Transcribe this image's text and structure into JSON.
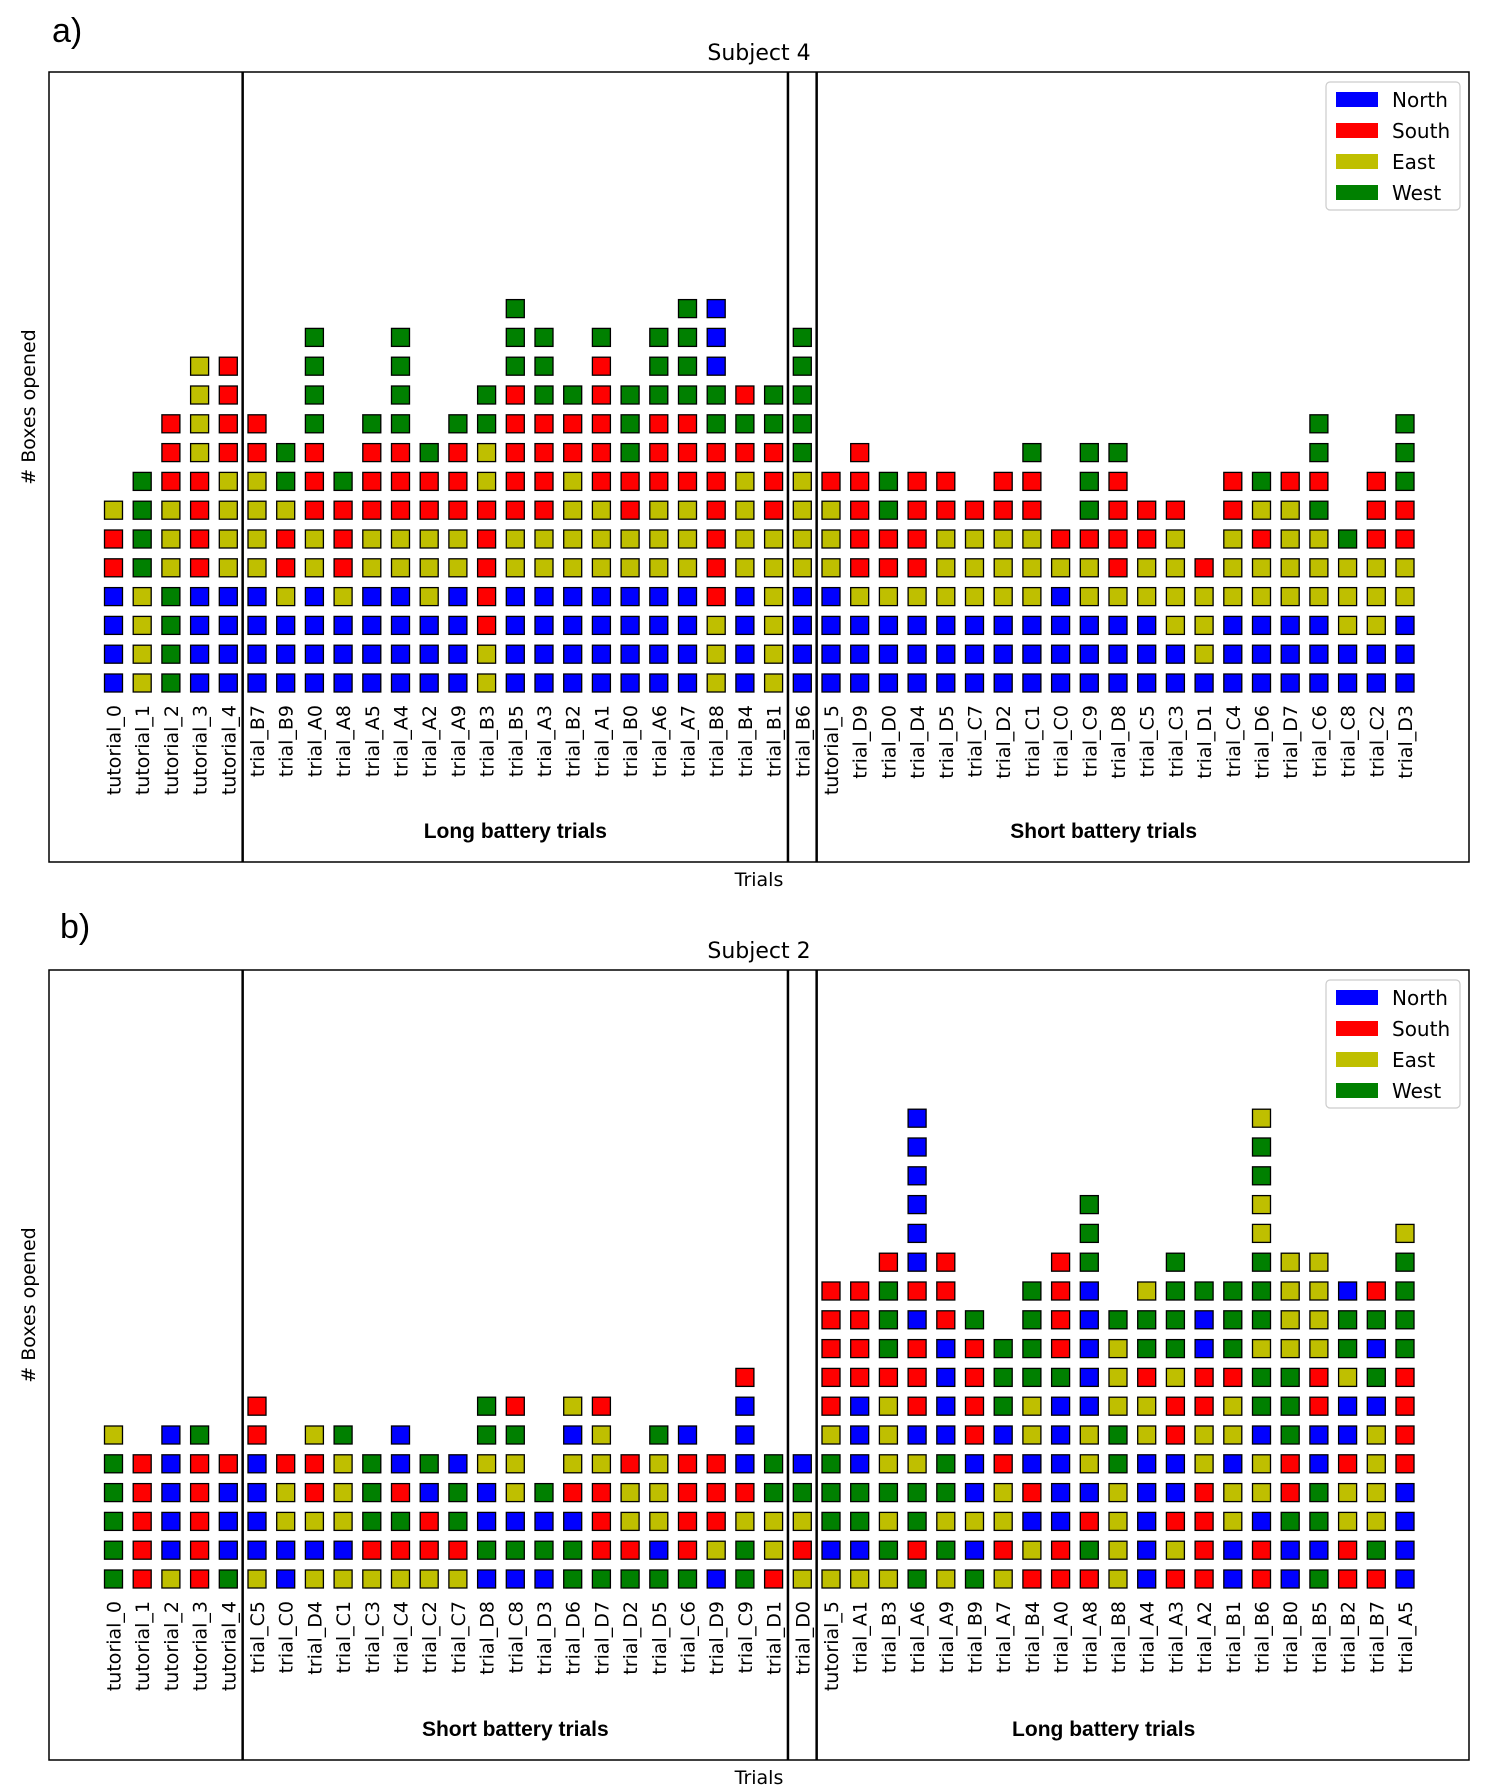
{
  "colors": {
    "N": "#0000ff",
    "S": "#ff0000",
    "E": "#bfbf00",
    "W": "#008000"
  },
  "chart_data": [
    {
      "type": "stacked-box",
      "panel_label": "a)",
      "title": "Subject 4",
      "xlabel": "Trials",
      "ylabel": "# Boxes opened",
      "legend": [
        {
          "key": "N",
          "label": "North"
        },
        {
          "key": "S",
          "label": "South"
        },
        {
          "key": "E",
          "label": "East"
        },
        {
          "key": "W",
          "label": "West"
        }
      ],
      "sections": [
        {
          "label": "",
          "start": 0,
          "end": 4
        },
        {
          "label": "Long battery trials",
          "start": 5,
          "end": 23
        },
        {
          "label": "",
          "start": 24,
          "end": 24
        },
        {
          "label": "Short battery trials",
          "start": 25,
          "end": 44
        }
      ],
      "trials": [
        {
          "name": "tutorial_0",
          "boxes": "NNNNSSE"
        },
        {
          "name": "tutorial_1",
          "boxes": "EEEEWWWW"
        },
        {
          "name": "tutorial_2",
          "boxes": "WWWWEEESSS"
        },
        {
          "name": "tutorial_3",
          "boxes": "NNNNSSSSEEEE"
        },
        {
          "name": "tutorial_4",
          "boxes": "NNNNEEEESSSS"
        },
        {
          "name": "trial_B7",
          "boxes": "NNNNEEEESS"
        },
        {
          "name": "trial_B9",
          "boxes": "NNNESSEWW"
        },
        {
          "name": "trial_A0",
          "boxes": "NNNNEESSSWWWW"
        },
        {
          "name": "trial_A8",
          "boxes": "NNNESSSW"
        },
        {
          "name": "trial_A5",
          "boxes": "NNNNEESSSW"
        },
        {
          "name": "trial_A4",
          "boxes": "NNNNEESSSWWWW"
        },
        {
          "name": "trial_A2",
          "boxes": "NNNEEESSW"
        },
        {
          "name": "trial_A9",
          "boxes": "NNNNEESSSW"
        },
        {
          "name": "trial_B3",
          "boxes": "EESSSSSEEWW"
        },
        {
          "name": "trial_B5",
          "boxes": "NNNNEESSSSSWWW"
        },
        {
          "name": "trial_A3",
          "boxes": "NNNNEESSSSWWW"
        },
        {
          "name": "trial_B2",
          "boxes": "NNNNEEEESSW"
        },
        {
          "name": "trial_A1",
          "boxes": "NNNNEEESSSSSW"
        },
        {
          "name": "trial_B0",
          "boxes": "NNNNEESSWWW"
        },
        {
          "name": "trial_A6",
          "boxes": "NNNNEEESSSWWW"
        },
        {
          "name": "trial_A7",
          "boxes": "NNNNEEESSSWWWW"
        },
        {
          "name": "trial_B8",
          "boxes": "EEESSSSSSWWNNN"
        },
        {
          "name": "trial_B4",
          "boxes": "NNNNEEEESWS"
        },
        {
          "name": "trial_B1",
          "boxes": "EEEEEESSSWW"
        },
        {
          "name": "trial_B6",
          "boxes": "NNNNEEEEWWWWW"
        },
        {
          "name": "tutorial_5",
          "boxes": "NNNNEEES"
        },
        {
          "name": "trial_D9",
          "boxes": "NNNESSSSS"
        },
        {
          "name": "trial_D0",
          "boxes": "NNNESSWW"
        },
        {
          "name": "trial_D4",
          "boxes": "NNNESSSS"
        },
        {
          "name": "trial_D5",
          "boxes": "NNNEEESS"
        },
        {
          "name": "trial_C7",
          "boxes": "NNNEEES"
        },
        {
          "name": "trial_D2",
          "boxes": "NNNEEESS"
        },
        {
          "name": "trial_C1",
          "boxes": "NNNEEESSW"
        },
        {
          "name": "trial_C0",
          "boxes": "NNNNES"
        },
        {
          "name": "trial_C9",
          "boxes": "NNNEESWWW"
        },
        {
          "name": "trial_D8",
          "boxes": "NNNESSSSW"
        },
        {
          "name": "trial_C5",
          "boxes": "NNNEESS"
        },
        {
          "name": "trial_C3",
          "boxes": "NNEEEES"
        },
        {
          "name": "trial_D1",
          "boxes": "NEEES"
        },
        {
          "name": "trial_C4",
          "boxes": "NNNEEESS"
        },
        {
          "name": "trial_D6",
          "boxes": "NNNEESEW"
        },
        {
          "name": "trial_D7",
          "boxes": "NNNEEEES"
        },
        {
          "name": "trial_C6",
          "boxes": "NNNEEEWSWW"
        },
        {
          "name": "trial_C8",
          "boxes": "NNEEEW"
        },
        {
          "name": "trial_C2",
          "boxes": "NNEEESSS"
        },
        {
          "name": "trial_D3",
          "boxes": "NNNEESSWWW"
        }
      ]
    },
    {
      "type": "stacked-box",
      "panel_label": "b)",
      "title": "Subject 2",
      "xlabel": "Trials",
      "ylabel": "# Boxes opened",
      "legend": [
        {
          "key": "N",
          "label": "North"
        },
        {
          "key": "S",
          "label": "South"
        },
        {
          "key": "E",
          "label": "East"
        },
        {
          "key": "W",
          "label": "West"
        }
      ],
      "sections": [
        {
          "label": "",
          "start": 0,
          "end": 4
        },
        {
          "label": "Short battery trials",
          "start": 5,
          "end": 23
        },
        {
          "label": "",
          "start": 24,
          "end": 24
        },
        {
          "label": "Long battery trials",
          "start": 25,
          "end": 44
        }
      ],
      "trials": [
        {
          "name": "tutorial_0",
          "boxes": "WWWWWE"
        },
        {
          "name": "tutorial_1",
          "boxes": "SSSSS"
        },
        {
          "name": "tutorial_2",
          "boxes": "ENNNNN"
        },
        {
          "name": "tutorial_3",
          "boxes": "SSSSSW"
        },
        {
          "name": "tutorial_4",
          "boxes": "WNNNS"
        },
        {
          "name": "trial_C5",
          "boxes": "ENNNNSS"
        },
        {
          "name": "trial_C0",
          "boxes": "NNEES"
        },
        {
          "name": "trial_D4",
          "boxes": "ENESSE"
        },
        {
          "name": "trial_C1",
          "boxes": "ENEEEW"
        },
        {
          "name": "trial_C3",
          "boxes": "ESWWW"
        },
        {
          "name": "trial_C4",
          "boxes": "ESWSNN"
        },
        {
          "name": "trial_C2",
          "boxes": "ESSNW"
        },
        {
          "name": "trial_C7",
          "boxes": "ESWWN"
        },
        {
          "name": "trial_D8",
          "boxes": "NWNNEWW"
        },
        {
          "name": "trial_C8",
          "boxes": "NWNEEWS"
        },
        {
          "name": "trial_D3",
          "boxes": "NWNW"
        },
        {
          "name": "trial_D6",
          "boxes": "WWNSENE"
        },
        {
          "name": "trial_D7",
          "boxes": "WSSSEES"
        },
        {
          "name": "trial_D2",
          "boxes": "WSEES"
        },
        {
          "name": "trial_D5",
          "boxes": "WNEEEW"
        },
        {
          "name": "trial_C6",
          "boxes": "WSSSSN"
        },
        {
          "name": "trial_D9",
          "boxes": "NESSS"
        },
        {
          "name": "trial_C9",
          "boxes": "WWESNNNS"
        },
        {
          "name": "trial_D1",
          "boxes": "SEEWW"
        },
        {
          "name": "trial_D0",
          "boxes": "ESEWN"
        },
        {
          "name": "tutorial_5",
          "boxes": "ENWWWESSSSS"
        },
        {
          "name": "trial_A1",
          "boxes": "ENWWNNNSSSS"
        },
        {
          "name": "trial_B3",
          "boxes": "EWEWEEESWWWS"
        },
        {
          "name": "trial_A6",
          "boxes": "WSWWENSSSNSNNNNNN"
        },
        {
          "name": "trial_A9",
          "boxes": "EWEWWNNNNSSS"
        },
        {
          "name": "trial_B9",
          "boxes": "WNENNSSSSW"
        },
        {
          "name": "trial_A7",
          "boxes": "ESEESNWWW"
        },
        {
          "name": "trial_B4",
          "boxes": "SENSNEEWWWW"
        },
        {
          "name": "trial_A0",
          "boxes": "SSNNNNNWSSSS"
        },
        {
          "name": "trial_A8",
          "boxes": "SWSNEENNNNNWWW"
        },
        {
          "name": "trial_B8",
          "boxes": "EEEEWWEEEW"
        },
        {
          "name": "trial_A4",
          "boxes": "NNNNNEESWWE"
        },
        {
          "name": "trial_A3",
          "boxes": "SESNNSSEWWWW"
        },
        {
          "name": "trial_A2",
          "boxes": "SSSSEESSNNW"
        },
        {
          "name": "trial_B1",
          "boxes": "NNEENEESWWW"
        },
        {
          "name": "trial_B6",
          "boxes": "SSNEENWWEWWWEEWWE"
        },
        {
          "name": "trial_B0",
          "boxes": "NNWSSWWWEEEE"
        },
        {
          "name": "trial_B5",
          "boxes": "WNWWNNSSEEEE"
        },
        {
          "name": "trial_B2",
          "boxes": "SSEESNNEWWN"
        },
        {
          "name": "trial_B7",
          "boxes": "SWEEEENWNWS"
        },
        {
          "name": "trial_A5",
          "boxes": "NNNNSSSSWWWWE"
        }
      ]
    }
  ]
}
